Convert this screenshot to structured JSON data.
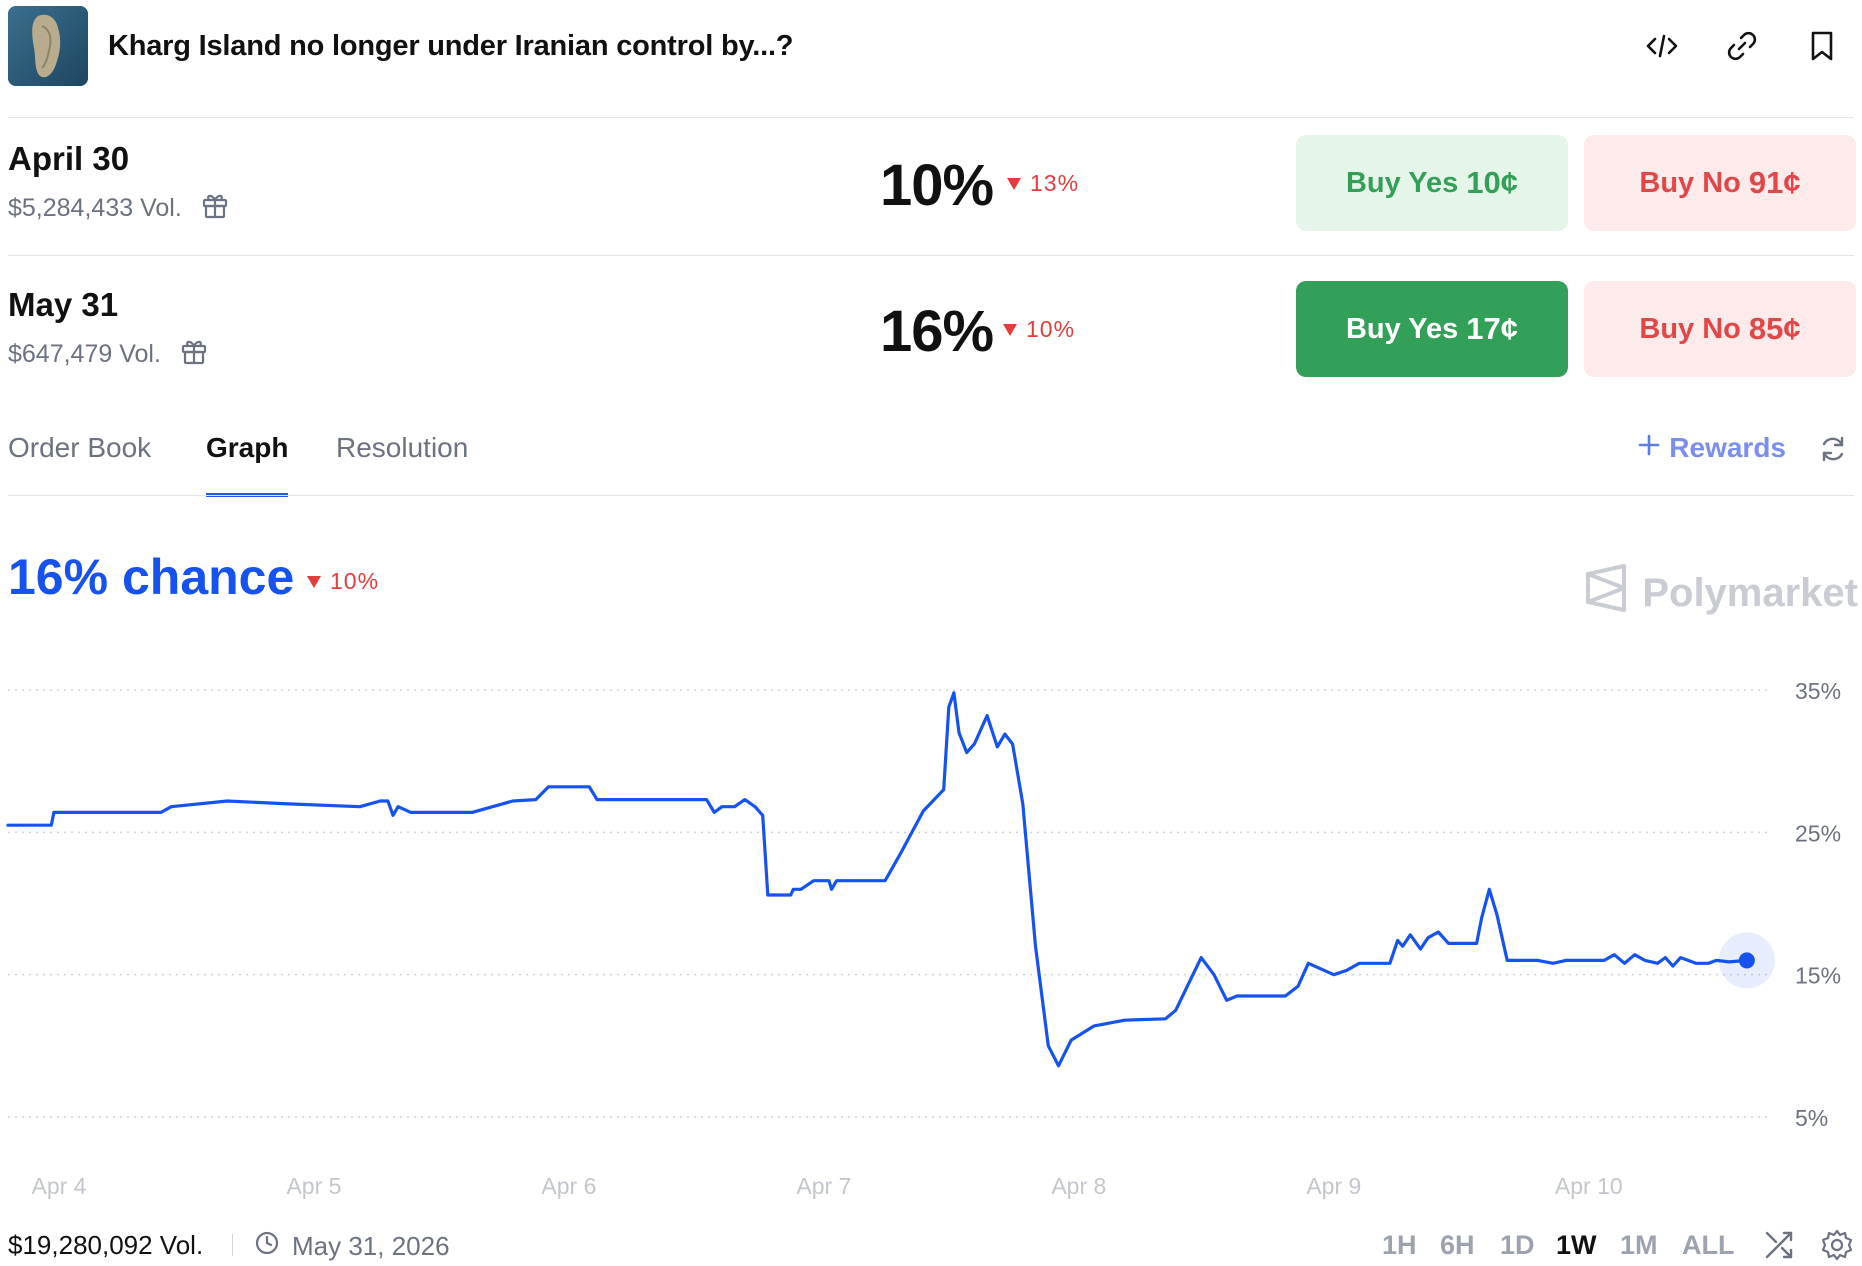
{
  "header": {
    "title": "Kharg Island no longer under Iranian control by...?",
    "thumbnail_icon": "island-thumbnail",
    "icons": [
      "embed-code-icon",
      "link-icon",
      "bookmark-icon"
    ]
  },
  "outcomes": [
    {
      "date": "April 30",
      "volume": "$5,284,433 Vol.",
      "probability": "10%",
      "change": "13%",
      "buy_yes_label": "Buy Yes",
      "buy_yes_price": "10¢",
      "buy_no_label": "Buy No",
      "buy_no_price": "91¢"
    },
    {
      "date": "May 31",
      "volume": "$647,479 Vol.",
      "probability": "16%",
      "change": "10%",
      "buy_yes_label": "Buy Yes",
      "buy_yes_price": "17¢",
      "buy_no_label": "Buy No",
      "buy_no_price": "85¢"
    }
  ],
  "tabs": {
    "order_book": "Order Book",
    "graph": "Graph",
    "resolution": "Resolution",
    "active": "Graph",
    "rewards": "Rewards"
  },
  "graph": {
    "chance": "16% chance",
    "change": "10%",
    "brand": "Polymarket"
  },
  "chart_data": {
    "type": "line",
    "title": "",
    "xlabel": "",
    "ylabel": "",
    "x_ticks": [
      "Apr 4",
      "Apr 5",
      "Apr 6",
      "Apr 7",
      "Apr 8",
      "Apr 9",
      "Apr 10"
    ],
    "y_ticks": [
      "35%",
      "25%",
      "15%",
      "5%"
    ],
    "ylim": [
      5,
      35
    ],
    "x_range_days": [
      3.8,
      10.75
    ],
    "grid": true,
    "series": [
      {
        "color": "#1652f0",
        "points": [
          [
            3.8,
            25.5
          ],
          [
            3.97,
            25.5
          ],
          [
            3.98,
            26.4
          ],
          [
            4.4,
            26.4
          ],
          [
            4.44,
            26.8
          ],
          [
            4.66,
            27.2
          ],
          [
            4.9,
            27.0
          ],
          [
            5.18,
            26.8
          ],
          [
            5.26,
            27.2
          ],
          [
            5.29,
            27.2
          ],
          [
            5.31,
            26.2
          ],
          [
            5.33,
            26.8
          ],
          [
            5.38,
            26.4
          ],
          [
            5.62,
            26.4
          ],
          [
            5.78,
            27.2
          ],
          [
            5.87,
            27.3
          ],
          [
            5.92,
            28.2
          ],
          [
            6.08,
            28.2
          ],
          [
            6.11,
            27.3
          ],
          [
            6.54,
            27.3
          ],
          [
            6.57,
            26.4
          ],
          [
            6.6,
            26.8
          ],
          [
            6.65,
            26.8
          ],
          [
            6.69,
            27.3
          ],
          [
            6.73,
            26.8
          ],
          [
            6.76,
            26.2
          ],
          [
            6.78,
            20.6
          ],
          [
            6.87,
            20.6
          ],
          [
            6.88,
            21.0
          ],
          [
            6.91,
            21.0
          ],
          [
            6.96,
            21.6
          ],
          [
            7.02,
            21.6
          ],
          [
            7.03,
            21.0
          ],
          [
            7.05,
            21.6
          ],
          [
            7.24,
            21.6
          ],
          [
            7.3,
            23.5
          ],
          [
            7.39,
            26.5
          ],
          [
            7.47,
            28.0
          ],
          [
            7.49,
            33.8
          ],
          [
            7.51,
            34.8
          ],
          [
            7.53,
            32.0
          ],
          [
            7.56,
            30.6
          ],
          [
            7.59,
            31.2
          ],
          [
            7.64,
            33.2
          ],
          [
            7.68,
            31.0
          ],
          [
            7.71,
            31.9
          ],
          [
            7.74,
            31.2
          ],
          [
            7.78,
            27.0
          ],
          [
            7.83,
            17.0
          ],
          [
            7.88,
            10.0
          ],
          [
            7.92,
            8.6
          ],
          [
            7.97,
            10.4
          ],
          [
            8.06,
            11.4
          ],
          [
            8.18,
            11.8
          ],
          [
            8.34,
            11.9
          ],
          [
            8.38,
            12.5
          ],
          [
            8.48,
            16.2
          ],
          [
            8.53,
            15.0
          ],
          [
            8.58,
            13.2
          ],
          [
            8.62,
            13.5
          ],
          [
            8.81,
            13.5
          ],
          [
            8.86,
            14.2
          ],
          [
            8.9,
            15.8
          ],
          [
            9.0,
            15.0
          ],
          [
            9.05,
            15.3
          ],
          [
            9.1,
            15.8
          ],
          [
            9.22,
            15.8
          ],
          [
            9.25,
            17.4
          ],
          [
            9.27,
            17.0
          ],
          [
            9.3,
            17.8
          ],
          [
            9.34,
            16.8
          ],
          [
            9.37,
            17.6
          ],
          [
            9.41,
            18.0
          ],
          [
            9.45,
            17.2
          ],
          [
            9.56,
            17.2
          ],
          [
            9.58,
            19.0
          ],
          [
            9.61,
            21.0
          ],
          [
            9.64,
            19.2
          ],
          [
            9.68,
            16.0
          ],
          [
            9.8,
            16.0
          ],
          [
            9.86,
            15.8
          ],
          [
            9.91,
            16.0
          ],
          [
            10.06,
            16.0
          ],
          [
            10.1,
            16.4
          ],
          [
            10.14,
            15.8
          ],
          [
            10.18,
            16.4
          ],
          [
            10.22,
            16.0
          ],
          [
            10.27,
            15.8
          ],
          [
            10.3,
            16.2
          ],
          [
            10.33,
            15.6
          ],
          [
            10.36,
            16.2
          ],
          [
            10.42,
            15.8
          ],
          [
            10.47,
            15.8
          ],
          [
            10.5,
            16.0
          ],
          [
            10.55,
            15.9
          ],
          [
            10.62,
            16.0
          ]
        ]
      }
    ]
  },
  "footer": {
    "volume": "$19,280,092 Vol.",
    "end_date": "May 31, 2026",
    "ranges": [
      "1H",
      "6H",
      "1D",
      "1W",
      "1M",
      "ALL"
    ],
    "active_range": "1W"
  },
  "colors": {
    "accent_blue": "#1652f0",
    "yes_green": "#33a05a",
    "no_red": "#e04848",
    "down_red": "#e23d3d"
  }
}
